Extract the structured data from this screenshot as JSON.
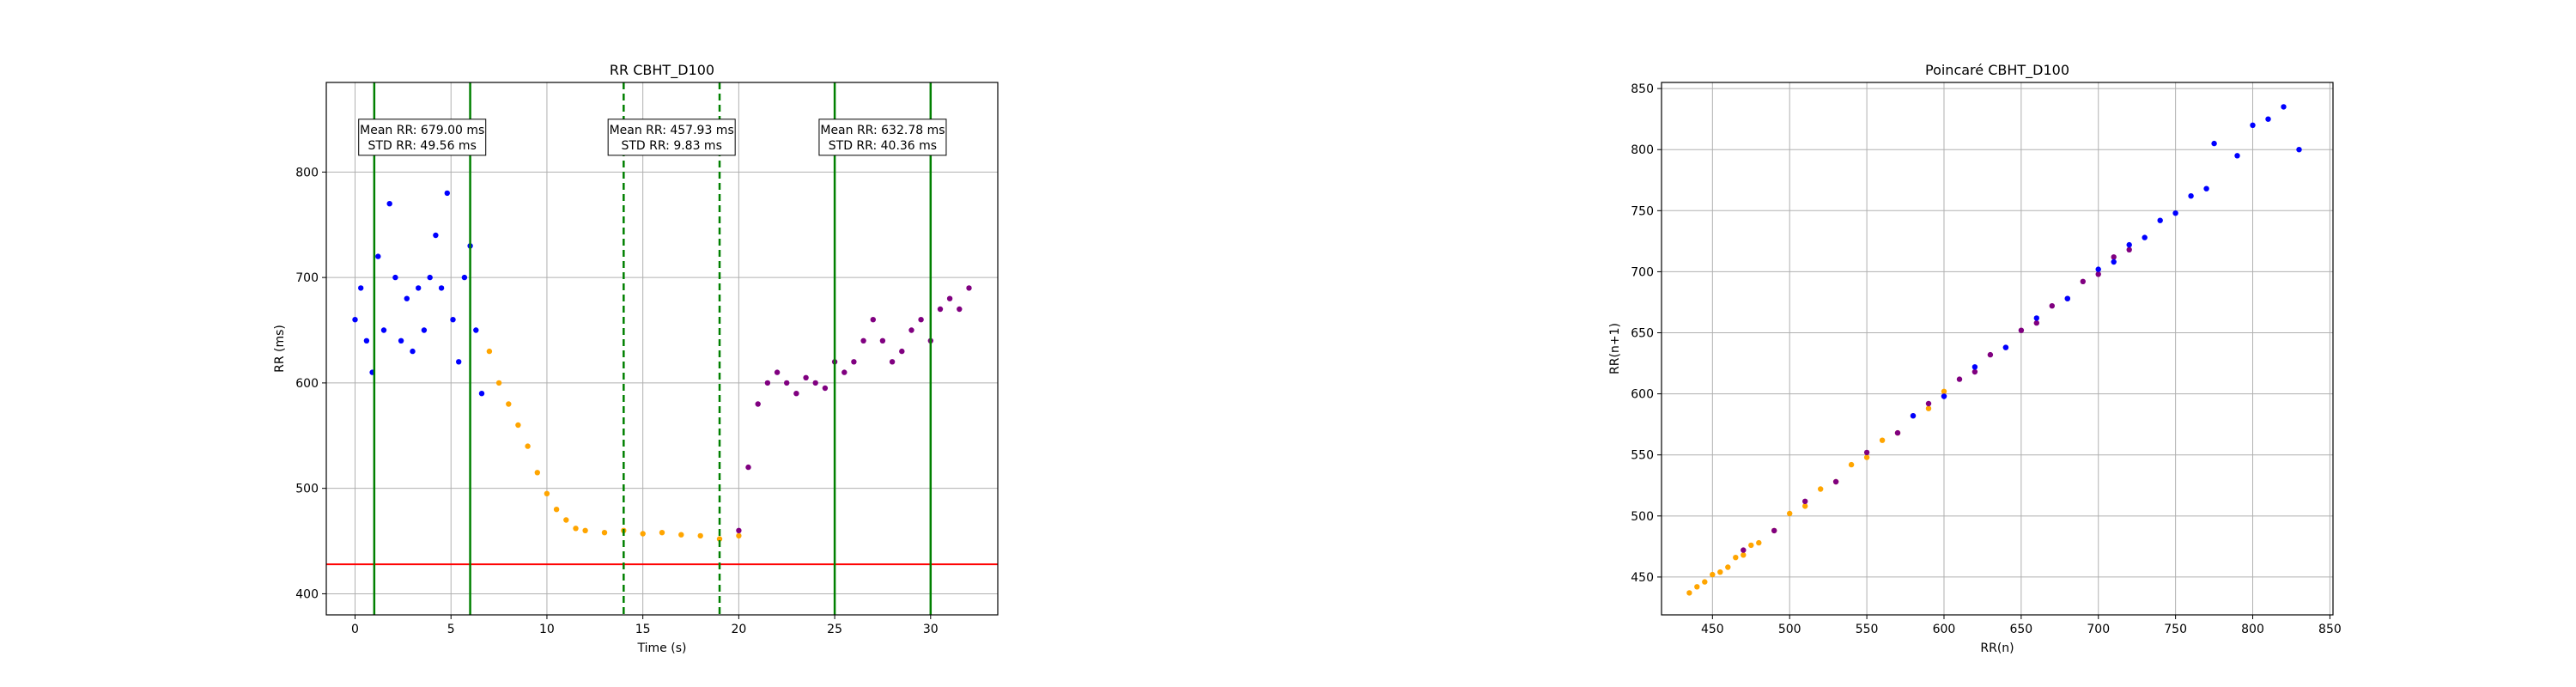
{
  "chart_data": [
    {
      "type": "scatter",
      "title": "RR CBHT_D100",
      "xlabel": "Time (s)",
      "ylabel": "RR (ms)",
      "xlim": [
        -1.5,
        33.5
      ],
      "ylim": [
        380,
        885
      ],
      "xticks": [
        0,
        5,
        10,
        15,
        20,
        25,
        30
      ],
      "yticks": [
        400,
        500,
        600,
        700,
        800
      ],
      "grid": true,
      "threshold_line": {
        "y": 428,
        "color": "#ff0000"
      },
      "vertical_lines": [
        {
          "x": 1,
          "style": "solid",
          "color": "#008000"
        },
        {
          "x": 6,
          "style": "solid",
          "color": "#008000"
        },
        {
          "x": 14,
          "style": "dashed",
          "color": "#008000"
        },
        {
          "x": 19,
          "style": "dashed",
          "color": "#008000"
        },
        {
          "x": 25,
          "style": "solid",
          "color": "#008000"
        },
        {
          "x": 30,
          "style": "solid",
          "color": "#008000"
        }
      ],
      "annotations": [
        {
          "x": 3.5,
          "y": 833,
          "line1": "Mean RR: 679.00 ms",
          "line2": "STD RR: 49.56 ms"
        },
        {
          "x": 16.5,
          "y": 833,
          "line1": "Mean RR: 457.93 ms",
          "line2": "STD RR: 9.83 ms"
        },
        {
          "x": 27.5,
          "y": 833,
          "line1": "Mean RR: 632.78 ms",
          "line2": "STD RR: 40.36 ms"
        }
      ],
      "series": [
        {
          "color": "#0000ff",
          "x": [
            0.0,
            0.3,
            0.6,
            0.9,
            1.2,
            1.5,
            1.8,
            2.1,
            2.4,
            2.7,
            3.0,
            3.3,
            3.6,
            3.9,
            4.2,
            4.5,
            4.8,
            5.1,
            5.4,
            5.7,
            6.0,
            6.3,
            6.6
          ],
          "y": [
            660,
            690,
            640,
            610,
            720,
            650,
            770,
            700,
            640,
            680,
            630,
            690,
            650,
            700,
            740,
            690,
            780,
            660,
            620,
            700,
            730,
            650,
            590
          ]
        },
        {
          "color": "#ffa500",
          "x": [
            7.0,
            7.5,
            8.0,
            8.5,
            9.0,
            9.5,
            10.0,
            10.5,
            11.0,
            11.5,
            12.0,
            13.0,
            14.0,
            15.0,
            16.0,
            17.0,
            18.0,
            19.0,
            20.0
          ],
          "y": [
            630,
            600,
            580,
            560,
            540,
            515,
            495,
            480,
            470,
            462,
            460,
            458,
            460,
            457,
            458,
            456,
            455,
            452,
            455
          ]
        },
        {
          "color": "#800080",
          "x": [
            20.0,
            20.5,
            21.0,
            21.5,
            22.0,
            22.5,
            23.0,
            23.5,
            24.0,
            24.5,
            25.0,
            25.5,
            26.0,
            26.5,
            27.0,
            27.5,
            28.0,
            28.5,
            29.0,
            29.5,
            30.0,
            30.5,
            31.0,
            31.5,
            32.0
          ],
          "y": [
            460,
            520,
            580,
            600,
            610,
            600,
            590,
            605,
            600,
            595,
            620,
            610,
            620,
            640,
            660,
            640,
            620,
            630,
            650,
            660,
            640,
            670,
            680,
            670,
            690
          ]
        }
      ]
    },
    {
      "type": "scatter",
      "title": "Poincaré CBHT_D100",
      "xlabel": "RR(n)",
      "ylabel": "RR(n+1)",
      "xlim": [
        417,
        852
      ],
      "ylim": [
        419,
        855
      ],
      "xticks": [
        450,
        500,
        550,
        600,
        650,
        700,
        750,
        800,
        850
      ],
      "yticks": [
        450,
        500,
        550,
        600,
        650,
        700,
        750,
        800,
        850
      ],
      "grid": true,
      "series": [
        {
          "color": "#ffa500",
          "x": [
            435,
            440,
            445,
            450,
            455,
            460,
            465,
            470,
            475,
            480,
            490,
            500,
            510,
            520,
            530,
            540,
            550,
            560,
            570,
            580,
            590,
            600
          ],
          "y": [
            437,
            442,
            446,
            452,
            454,
            458,
            466,
            468,
            476,
            478,
            488,
            502,
            508,
            522,
            528,
            542,
            548,
            562,
            568,
            582,
            588,
            602
          ]
        },
        {
          "color": "#800080",
          "x": [
            470,
            490,
            510,
            530,
            550,
            570,
            590,
            600,
            610,
            620,
            630,
            640,
            650,
            660,
            670,
            680,
            690,
            700,
            710,
            720
          ],
          "y": [
            472,
            488,
            512,
            528,
            552,
            568,
            592,
            598,
            612,
            618,
            632,
            638,
            652,
            658,
            672,
            678,
            692,
            698,
            712,
            718
          ]
        },
        {
          "color": "#0000ff",
          "x": [
            580,
            600,
            620,
            640,
            660,
            680,
            700,
            710,
            720,
            730,
            740,
            750,
            760,
            770,
            775,
            790,
            800,
            810,
            820,
            830
          ],
          "y": [
            582,
            598,
            622,
            638,
            662,
            678,
            702,
            708,
            722,
            728,
            742,
            748,
            762,
            768,
            805,
            795,
            820,
            825,
            835,
            800
          ]
        }
      ]
    }
  ]
}
